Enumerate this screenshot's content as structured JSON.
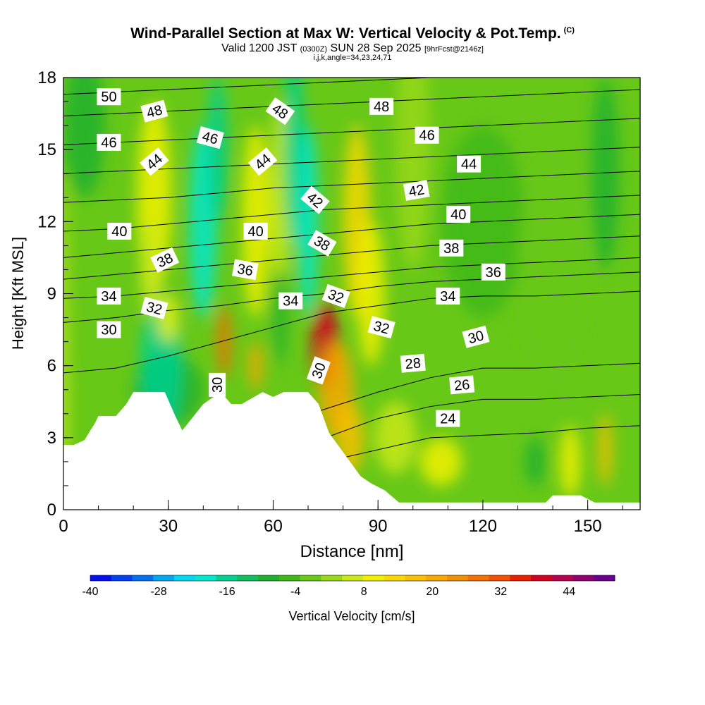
{
  "title": {
    "line1": "Wind-Parallel Section at Max W: Vertical Velocity & Pot.Temp.",
    "copyright": "(C)",
    "line2_valid": "Valid 1200 JST",
    "line2_utc": "(0300Z)",
    "line2_date": "SUN 28 Sep 2025",
    "line2_fcst": "[9hrFcst@2146z]",
    "line3": "i,j,k,angle=34,23,24,71"
  },
  "colors": {
    "background": "#ffffff",
    "terrain": "#ffffff",
    "contour": "#000000",
    "label_bg": "#ffffff"
  },
  "chart_data": {
    "type": "heatmap",
    "title": "Wind-Parallel Section at Max W: Vertical Velocity & Pot.Temp.",
    "xlabel": "Distance [nm]",
    "ylabel": "Height [Kft MSL]",
    "xlim": [
      0,
      165
    ],
    "ylim": [
      0,
      18
    ],
    "x_ticks": [
      0,
      30,
      60,
      90,
      120,
      150
    ],
    "y_ticks": [
      0,
      3,
      6,
      9,
      12,
      15,
      18
    ],
    "colorbar": {
      "label": "Vertical Velocity [cm/s]",
      "min": -40,
      "max": 52,
      "step": 4,
      "tick_values": [
        -40,
        -28,
        -16,
        -4,
        8,
        20,
        32,
        44
      ],
      "tick_labels": [
        "-40",
        "-28",
        "-16",
        "-4",
        "8",
        "20",
        "32",
        "44"
      ],
      "colors": [
        "#0010ee",
        "#0040ee",
        "#0070ee",
        "#00a8f0",
        "#00d8f0",
        "#00e8d0",
        "#00d090",
        "#10c060",
        "#20b030",
        "#40b818",
        "#68c818",
        "#98d818",
        "#c8e818",
        "#f0f000",
        "#f8d800",
        "#f8c000",
        "#f8a800",
        "#f09000",
        "#f07000",
        "#f05000",
        "#e82000",
        "#d00020",
        "#b80050",
        "#900070",
        "#6a0090"
      ]
    },
    "terrain_profile": {
      "distance_nm": [
        0,
        3,
        6,
        9,
        10,
        15,
        18,
        20,
        24,
        29,
        32,
        34,
        40,
        45,
        48,
        51,
        57,
        60,
        63,
        70,
        73,
        76,
        78,
        82,
        85,
        88,
        92,
        96,
        100,
        108,
        120,
        132,
        138,
        140,
        148,
        152,
        160,
        165
      ],
      "height_kft": [
        2.7,
        2.7,
        2.9,
        3.6,
        3.9,
        3.9,
        4.4,
        4.9,
        4.9,
        4.9,
        3.9,
        3.3,
        4.4,
        4.9,
        4.4,
        4.4,
        4.9,
        4.7,
        4.9,
        4.9,
        4.4,
        3.2,
        2.8,
        2.0,
        1.4,
        1.1,
        0.8,
        0.3,
        0.3,
        0.3,
        0.3,
        0.3,
        0.3,
        0.6,
        0.6,
        0.3,
        0.3,
        0.3
      ]
    },
    "isentrope_labels": [
      {
        "value": "50",
        "x": 13,
        "y": 17.2,
        "angle": 0
      },
      {
        "value": "48",
        "x": 26,
        "y": 16.6,
        "angle": -15
      },
      {
        "value": "48",
        "x": 62,
        "y": 16.6,
        "angle": 35
      },
      {
        "value": "48",
        "x": 91,
        "y": 16.8,
        "angle": 0
      },
      {
        "value": "46",
        "x": 13,
        "y": 15.3,
        "angle": 0
      },
      {
        "value": "46",
        "x": 42,
        "y": 15.5,
        "angle": 15
      },
      {
        "value": "46",
        "x": 104,
        "y": 15.6,
        "angle": 0
      },
      {
        "value": "44",
        "x": 26,
        "y": 14.5,
        "angle": -40
      },
      {
        "value": "44",
        "x": 57,
        "y": 14.5,
        "angle": -40
      },
      {
        "value": "44",
        "x": 116,
        "y": 14.4,
        "angle": 0
      },
      {
        "value": "42",
        "x": 72,
        "y": 12.9,
        "angle": 40
      },
      {
        "value": "42",
        "x": 101,
        "y": 13.3,
        "angle": -10
      },
      {
        "value": "40",
        "x": 16,
        "y": 11.6,
        "angle": 0
      },
      {
        "value": "40",
        "x": 55,
        "y": 11.6,
        "angle": 0
      },
      {
        "value": "40",
        "x": 113,
        "y": 12.3,
        "angle": 0
      },
      {
        "value": "38",
        "x": 29,
        "y": 10.4,
        "angle": -25
      },
      {
        "value": "38",
        "x": 74,
        "y": 11.1,
        "angle": 30
      },
      {
        "value": "38",
        "x": 111,
        "y": 10.9,
        "angle": 0
      },
      {
        "value": "36",
        "x": 52,
        "y": 10.0,
        "angle": 10
      },
      {
        "value": "36",
        "x": 123,
        "y": 9.9,
        "angle": 0
      },
      {
        "value": "34",
        "x": 13,
        "y": 8.9,
        "angle": 0
      },
      {
        "value": "34",
        "x": 65,
        "y": 8.7,
        "angle": 0
      },
      {
        "value": "34",
        "x": 110,
        "y": 8.9,
        "angle": 0
      },
      {
        "value": "32",
        "x": 26,
        "y": 8.4,
        "angle": 15
      },
      {
        "value": "32",
        "x": 78,
        "y": 8.9,
        "angle": 20
      },
      {
        "value": "32",
        "x": 91,
        "y": 7.6,
        "angle": 15
      },
      {
        "value": "30",
        "x": 13,
        "y": 7.5,
        "angle": 0
      },
      {
        "value": "30",
        "x": 44,
        "y": 5.2,
        "angle": -90
      },
      {
        "value": "30",
        "x": 73,
        "y": 5.8,
        "angle": -70
      },
      {
        "value": "30",
        "x": 118,
        "y": 7.2,
        "angle": -15
      },
      {
        "value": "28",
        "x": 100,
        "y": 6.1,
        "angle": -5
      },
      {
        "value": "26",
        "x": 114,
        "y": 5.2,
        "angle": -5
      },
      {
        "value": "24",
        "x": 110,
        "y": 3.8,
        "angle": 0
      }
    ],
    "isentropes": [
      {
        "theta": 24,
        "height_kft": [
          0.5,
          0.5,
          0.8,
          1.0,
          1.5,
          2.0,
          2.5,
          3.0,
          3.1,
          3.2,
          3.4,
          3.5
        ]
      },
      {
        "theta": 26,
        "height_kft": [
          0.7,
          1.0,
          1.5,
          1.8,
          2.5,
          3.0,
          3.8,
          4.3,
          4.6,
          4.6,
          4.7,
          4.8
        ]
      },
      {
        "theta": 28,
        "height_kft": [
          1.2,
          1.6,
          2.3,
          2.8,
          3.5,
          4.2,
          4.9,
          5.5,
          5.9,
          5.9,
          6.0,
          6.1
        ]
      },
      {
        "theta": 30,
        "height_kft": [
          5.7,
          5.9,
          6.4,
          7.0,
          7.6,
          8.2,
          8.5,
          8.8,
          8.9,
          8.9,
          9.0,
          9.1
        ]
      },
      {
        "theta": 32,
        "height_kft": [
          7.8,
          8.0,
          8.3,
          8.5,
          8.8,
          9.0,
          9.3,
          9.5,
          9.6,
          9.7,
          9.8,
          9.9
        ]
      },
      {
        "theta": 34,
        "height_kft": [
          8.8,
          8.9,
          9.1,
          9.3,
          9.5,
          9.7,
          9.9,
          10.1,
          10.2,
          10.3,
          10.4,
          10.5
        ]
      },
      {
        "theta": 36,
        "height_kft": [
          9.6,
          9.8,
          10.0,
          10.2,
          10.4,
          10.6,
          10.8,
          11.0,
          11.1,
          11.2,
          11.3,
          11.4
        ]
      },
      {
        "theta": 38,
        "height_kft": [
          10.5,
          10.7,
          10.9,
          11.1,
          11.3,
          11.5,
          11.7,
          11.9,
          12.0,
          12.1,
          12.2,
          12.3
        ]
      },
      {
        "theta": 40,
        "height_kft": [
          11.6,
          11.7,
          11.9,
          12.1,
          12.3,
          12.5,
          12.6,
          12.7,
          12.8,
          12.9,
          13.0,
          13.1
        ]
      },
      {
        "theta": 42,
        "height_kft": [
          12.8,
          12.9,
          13.0,
          13.2,
          13.4,
          13.5,
          13.6,
          13.7,
          13.8,
          13.9,
          14.0,
          14.1
        ]
      },
      {
        "theta": 44,
        "height_kft": [
          14.0,
          14.1,
          14.2,
          14.3,
          14.4,
          14.5,
          14.6,
          14.7,
          14.8,
          14.9,
          15.0,
          15.1
        ]
      },
      {
        "theta": 46,
        "height_kft": [
          15.2,
          15.3,
          15.4,
          15.5,
          15.6,
          15.7,
          15.8,
          15.9,
          16.0,
          16.1,
          16.2,
          16.3
        ]
      },
      {
        "theta": 48,
        "height_kft": [
          16.4,
          16.5,
          16.6,
          16.7,
          16.8,
          16.9,
          17.0,
          17.1,
          17.2,
          17.3,
          17.4,
          17.5
        ]
      },
      {
        "theta": 50,
        "height_kft": [
          17.3,
          17.4,
          17.5,
          17.6,
          17.7,
          17.8,
          17.9,
          18.0,
          18.0,
          18.0,
          18.0,
          18.0
        ]
      }
    ],
    "isentrope_x_nm": [
      0,
      15,
      30,
      45,
      60,
      75,
      90,
      105,
      120,
      135,
      150,
      165
    ]
  }
}
